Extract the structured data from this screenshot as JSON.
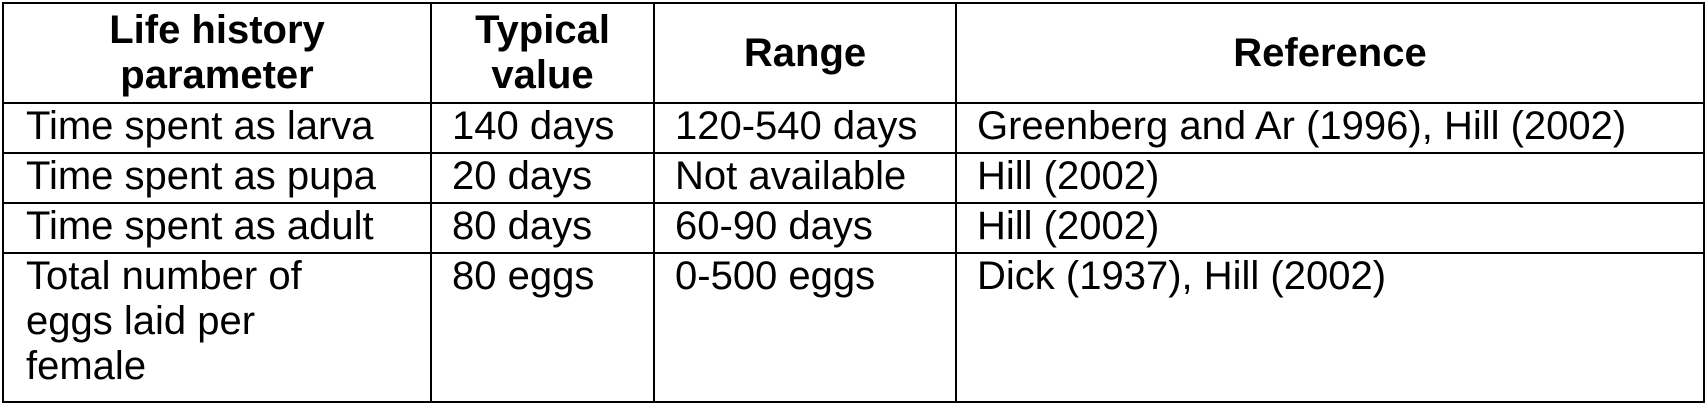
{
  "table": {
    "headers": [
      "Life history\nparameter",
      "Typical\nvalue",
      "Range",
      "Reference"
    ],
    "rows": [
      [
        "Time spent as larva",
        "140 days",
        "120-540 days",
        "Greenberg and Ar (1996), Hill (2002)"
      ],
      [
        "Time spent as pupa",
        "20 days",
        "Not available",
        "Hill (2002)"
      ],
      [
        "Time spent as adult",
        "80 days",
        "60-90 days",
        "Hill (2002)"
      ],
      [
        "Total number of\neggs laid per\nfemale",
        "80 eggs",
        "0-500 eggs",
        "Dick (1937), Hill (2002)"
      ]
    ]
  }
}
